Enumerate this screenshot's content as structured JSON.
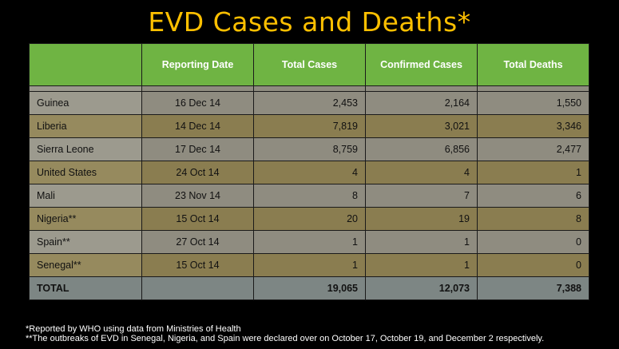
{
  "slide": {
    "title": "EVD Cases and Deaths*"
  },
  "table": {
    "headers": [
      "",
      "Reporting Date",
      "Total Cases",
      "Confirmed Cases",
      "Total Deaths"
    ],
    "rows": [
      {
        "country": "Guinea",
        "date": "16 Dec 14",
        "total_cases": "2,453",
        "confirmed_cases": "2,164",
        "total_deaths": "1,550"
      },
      {
        "country": "Liberia",
        "date": "14 Dec 14",
        "total_cases": "7,819",
        "confirmed_cases": "3,021",
        "total_deaths": "3,346"
      },
      {
        "country": "Sierra Leone",
        "date": "17 Dec 14",
        "total_cases": "8,759",
        "confirmed_cases": "6,856",
        "total_deaths": "2,477"
      },
      {
        "country": "United States",
        "date": "24 Oct 14",
        "total_cases": "4",
        "confirmed_cases": "4",
        "total_deaths": "1"
      },
      {
        "country": "Mali",
        "date": "23 Nov 14",
        "total_cases": "8",
        "confirmed_cases": "7",
        "total_deaths": "6"
      },
      {
        "country": "Nigeria**",
        "date": "15 Oct 14",
        "total_cases": "20",
        "confirmed_cases": "19",
        "total_deaths": "8"
      },
      {
        "country": "Spain**",
        "date": "27 Oct 14",
        "total_cases": "1",
        "confirmed_cases": "1",
        "total_deaths": "0"
      },
      {
        "country": "Senegal**",
        "date": "15 Oct 14",
        "total_cases": "1",
        "confirmed_cases": "1",
        "total_deaths": "0"
      }
    ],
    "total": {
      "label": "TOTAL",
      "date": "",
      "total_cases": "19,065",
      "confirmed_cases": "12,073",
      "total_deaths": "7,388"
    }
  },
  "footnotes": {
    "note1": "*Reported by WHO using data from Ministries of Health",
    "note2": "**The outbreaks of EVD in Senegal, Nigeria, and Spain were declared over on October 17, October 19, and December 2 respectively."
  },
  "colors": {
    "title": "#FFC000",
    "header_bg": "#6FB443",
    "row_odd": "#8F8C80",
    "row_even": "#8A7D50",
    "total_row": "#7D8684",
    "background": "#000000"
  }
}
